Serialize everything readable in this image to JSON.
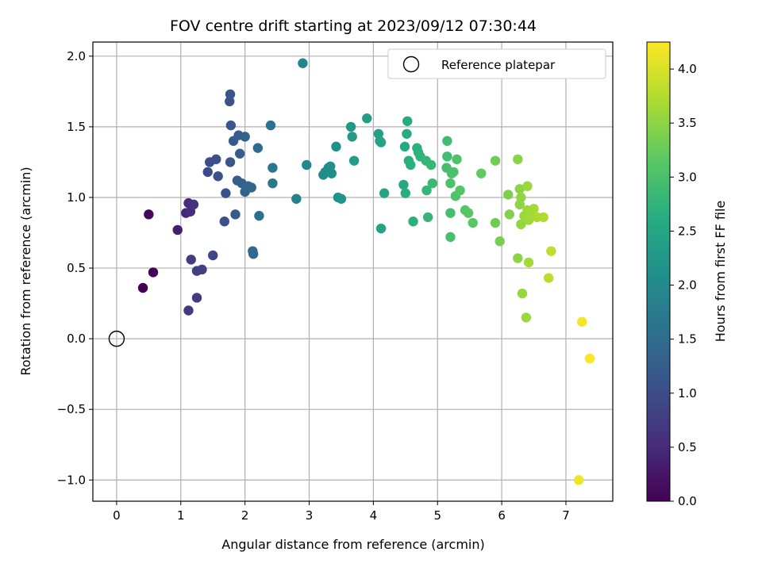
{
  "chart_data": {
    "type": "scatter",
    "title": "FOV centre drift starting at 2023/09/12 07:30:44",
    "xlabel": "Angular distance from reference (arcmin)",
    "ylabel": "Rotation from reference (arcmin)",
    "colorbar_label": "Hours from first FF file",
    "xlim": [
      -0.37,
      7.73
    ],
    "ylim": [
      -1.15,
      2.1
    ],
    "clim": [
      0,
      4.25
    ],
    "x_ticks": [
      "0",
      "1",
      "2",
      "3",
      "4",
      "5",
      "6",
      "7"
    ],
    "y_ticks": [
      "−1.0",
      "−0.5",
      "0.0",
      "0.5",
      "1.0",
      "1.5",
      "2.0"
    ],
    "colorbar_ticks": [
      "0.0",
      "0.5",
      "1.0",
      "1.5",
      "2.0",
      "2.5",
      "3.0",
      "3.5",
      "4.0"
    ],
    "colormap": "viridis",
    "grid": true,
    "legend": {
      "position": "top-right",
      "label": "Reference platepar"
    },
    "reference_point": {
      "x": 0,
      "y": 0
    },
    "points": [
      [
        0.41,
        0.36,
        0.0
      ],
      [
        0.57,
        0.47,
        0.05
      ],
      [
        0.5,
        0.88,
        0.1
      ],
      [
        0.95,
        0.77,
        0.35
      ],
      [
        1.08,
        0.89,
        0.45
      ],
      [
        1.12,
        0.96,
        0.5
      ],
      [
        1.15,
        0.9,
        0.55
      ],
      [
        1.2,
        0.95,
        0.6
      ],
      [
        1.12,
        0.2,
        0.7
      ],
      [
        1.25,
        0.29,
        0.72
      ],
      [
        1.16,
        0.56,
        0.75
      ],
      [
        1.25,
        0.48,
        0.78
      ],
      [
        1.33,
        0.49,
        0.8
      ],
      [
        1.5,
        0.59,
        0.9
      ],
      [
        1.42,
        1.18,
        0.95
      ],
      [
        1.45,
        1.25,
        1.0
      ],
      [
        1.55,
        1.27,
        1.02
      ],
      [
        1.58,
        1.15,
        1.05
      ],
      [
        1.68,
        0.83,
        1.05
      ],
      [
        1.7,
        1.03,
        1.1
      ],
      [
        1.76,
        1.68,
        1.1
      ],
      [
        1.77,
        1.73,
        1.12
      ],
      [
        1.78,
        1.51,
        1.15
      ],
      [
        1.77,
        1.25,
        1.15
      ],
      [
        1.82,
        1.4,
        1.2
      ],
      [
        1.85,
        0.88,
        1.2
      ],
      [
        1.9,
        1.44,
        1.22
      ],
      [
        1.92,
        1.31,
        1.25
      ],
      [
        1.88,
        1.12,
        1.25
      ],
      [
        1.95,
        1.1,
        1.3
      ],
      [
        2.0,
        1.43,
        1.3
      ],
      [
        2.0,
        1.04,
        1.35
      ],
      [
        2.05,
        1.08,
        1.38
      ],
      [
        2.1,
        1.07,
        1.4
      ],
      [
        2.12,
        0.62,
        1.45
      ],
      [
        2.13,
        0.6,
        1.45
      ],
      [
        2.2,
        1.35,
        1.5
      ],
      [
        2.22,
        0.87,
        1.55
      ],
      [
        2.4,
        1.51,
        1.6
      ],
      [
        2.43,
        1.21,
        1.65
      ],
      [
        2.43,
        1.1,
        1.7
      ],
      [
        2.8,
        0.99,
        1.85
      ],
      [
        2.9,
        1.95,
        1.9
      ],
      [
        2.96,
        1.23,
        1.95
      ],
      [
        3.22,
        1.16,
        2.0
      ],
      [
        3.25,
        1.18,
        2.02
      ],
      [
        3.3,
        1.21,
        2.05
      ],
      [
        3.33,
        1.22,
        2.07
      ],
      [
        3.35,
        1.17,
        2.08
      ],
      [
        3.42,
        1.36,
        2.12
      ],
      [
        3.45,
        1.0,
        2.15
      ],
      [
        3.5,
        0.99,
        2.18
      ],
      [
        3.65,
        1.5,
        2.25
      ],
      [
        3.67,
        1.43,
        2.28
      ],
      [
        3.7,
        1.26,
        2.3
      ],
      [
        3.9,
        1.56,
        2.35
      ],
      [
        4.08,
        1.45,
        2.4
      ],
      [
        4.1,
        1.4,
        2.42
      ],
      [
        4.12,
        1.39,
        2.45
      ],
      [
        4.12,
        0.78,
        2.45
      ],
      [
        4.17,
        1.03,
        2.5
      ],
      [
        4.47,
        1.09,
        2.55
      ],
      [
        4.49,
        1.36,
        2.58
      ],
      [
        4.52,
        1.45,
        2.6
      ],
      [
        4.53,
        1.54,
        2.6
      ],
      [
        4.5,
        1.03,
        2.62
      ],
      [
        4.55,
        1.26,
        2.65
      ],
      [
        4.58,
        1.23,
        2.68
      ],
      [
        4.62,
        0.83,
        2.7
      ],
      [
        4.68,
        1.35,
        2.7
      ],
      [
        4.7,
        1.32,
        2.72
      ],
      [
        4.73,
        1.29,
        2.75
      ],
      [
        4.82,
        1.26,
        2.78
      ],
      [
        4.83,
        1.05,
        2.8
      ],
      [
        4.85,
        0.86,
        2.8
      ],
      [
        4.9,
        1.23,
        2.82
      ],
      [
        4.92,
        1.1,
        2.85
      ],
      [
        5.15,
        1.4,
        2.9
      ],
      [
        5.15,
        1.29,
        2.92
      ],
      [
        5.14,
        1.21,
        2.95
      ],
      [
        5.2,
        0.89,
        2.95
      ],
      [
        5.2,
        0.72,
        2.98
      ],
      [
        5.22,
        1.17,
        3.0
      ],
      [
        5.25,
        1.18,
        3.02
      ],
      [
        5.2,
        1.1,
        3.02
      ],
      [
        5.28,
        1.01,
        3.05
      ],
      [
        5.3,
        1.27,
        3.05
      ],
      [
        5.35,
        1.05,
        3.08
      ],
      [
        5.43,
        0.91,
        3.1
      ],
      [
        5.48,
        0.89,
        3.12
      ],
      [
        5.55,
        0.82,
        3.15
      ],
      [
        5.68,
        1.17,
        3.2
      ],
      [
        5.9,
        0.82,
        3.3
      ],
      [
        5.9,
        1.26,
        3.3
      ],
      [
        5.97,
        0.69,
        3.35
      ],
      [
        6.1,
        1.02,
        3.4
      ],
      [
        6.12,
        0.88,
        3.42
      ],
      [
        6.25,
        1.27,
        3.48
      ],
      [
        6.25,
        0.57,
        3.5
      ],
      [
        6.28,
        1.06,
        3.5
      ],
      [
        6.28,
        0.95,
        3.52
      ],
      [
        6.3,
        1.0,
        3.52
      ],
      [
        6.3,
        0.81,
        3.55
      ],
      [
        6.32,
        0.32,
        3.55
      ],
      [
        6.35,
        0.87,
        3.58
      ],
      [
        6.38,
        0.15,
        3.6
      ],
      [
        6.4,
        0.91,
        3.6
      ],
      [
        6.4,
        1.08,
        3.6
      ],
      [
        6.42,
        0.84,
        3.62
      ],
      [
        6.42,
        0.54,
        3.65
      ],
      [
        6.45,
        0.88,
        3.65
      ],
      [
        6.5,
        0.92,
        3.68
      ],
      [
        6.55,
        0.86,
        3.7
      ],
      [
        6.65,
        0.86,
        3.72
      ],
      [
        6.73,
        0.43,
        3.8
      ],
      [
        6.77,
        0.62,
        3.82
      ],
      [
        7.2,
        -1.0,
        4.15
      ],
      [
        7.25,
        0.12,
        4.18
      ],
      [
        7.37,
        -0.14,
        4.25
      ]
    ]
  }
}
